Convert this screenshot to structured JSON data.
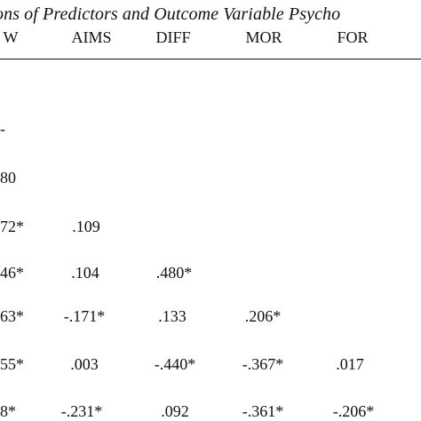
{
  "table": {
    "title": "ons of Predictors and Outcome Variable Psycho",
    "headers": [
      "W",
      "AIMS",
      "DIFF",
      "MOR",
      "FOR"
    ],
    "rows": [
      [
        "-",
        "",
        "",
        "",
        ""
      ],
      [
        "80",
        "",
        "",
        "",
        ""
      ],
      [
        "72*",
        ".109",
        "",
        "",
        ""
      ],
      [
        "46*",
        ".104",
        ".480*",
        "",
        ""
      ],
      [
        "63*",
        "-.171*",
        ".133",
        ".206*",
        ""
      ],
      [
        "55*",
        ".003",
        "-.440*",
        "-.367*",
        ".017"
      ],
      [
        "8*",
        "-.231*",
        ".092",
        "-.361*",
        "-.206*"
      ]
    ]
  }
}
